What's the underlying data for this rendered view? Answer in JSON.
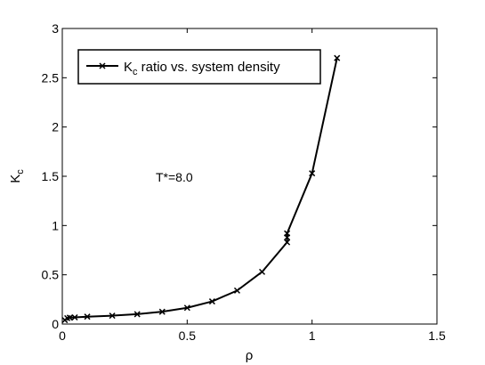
{
  "chart_data": {
    "type": "line",
    "title": "",
    "xlabel": "ρ",
    "ylabel_main": "K",
    "ylabel_sub": "c",
    "xlim": [
      0,
      1.5
    ],
    "ylim": [
      0,
      3
    ],
    "xticks": [
      0,
      0.5,
      1,
      1.5
    ],
    "xtick_labels": [
      "0",
      "0.5",
      "1",
      "1.5"
    ],
    "yticks": [
      0,
      0.5,
      1,
      1.5,
      2,
      2.5,
      3
    ],
    "ytick_labels": [
      "0",
      "0.5",
      "1",
      "1.5",
      "2",
      "2.5",
      "3"
    ],
    "grid": false,
    "legend_position": "top-left",
    "annotation": "T*=8.0",
    "series": [
      {
        "legend_main": "K",
        "legend_sub": "c",
        "legend_rest": " ratio vs. system density",
        "color": "#000000",
        "marker": "x",
        "x": [
          0.01,
          0.02,
          0.03,
          0.05,
          0.1,
          0.2,
          0.3,
          0.4,
          0.5,
          0.6,
          0.7,
          0.8,
          0.9,
          0.9,
          0.9,
          1.0,
          1.1
        ],
        "y": [
          0.04,
          0.06,
          0.065,
          0.068,
          0.075,
          0.085,
          0.1,
          0.125,
          0.165,
          0.23,
          0.34,
          0.53,
          0.83,
          0.88,
          0.92,
          1.53,
          2.7
        ]
      }
    ]
  }
}
